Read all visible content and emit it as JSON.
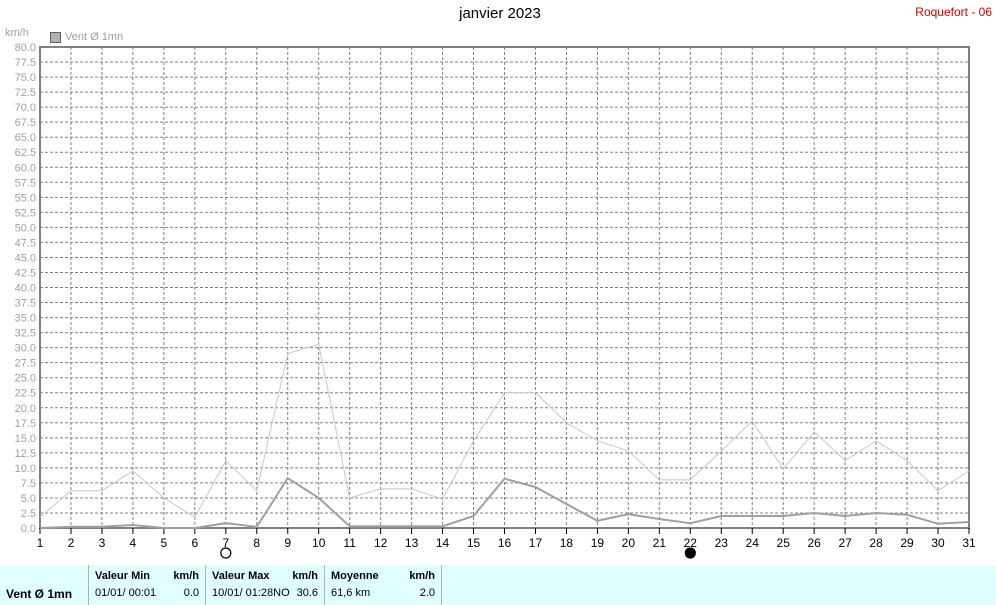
{
  "header": {
    "title": "janvier 2023",
    "station": "Roquefort - 06"
  },
  "chart_data": {
    "type": "line",
    "ylabel": "km/h",
    "ylim": [
      0,
      80
    ],
    "ytick_step": 2.5,
    "x": [
      1,
      2,
      3,
      4,
      5,
      6,
      7,
      8,
      9,
      10,
      11,
      12,
      13,
      14,
      15,
      16,
      17,
      18,
      19,
      20,
      21,
      22,
      23,
      24,
      25,
      26,
      27,
      28,
      29,
      30,
      31
    ],
    "series": [
      {
        "name": "Vent Ø 1mn",
        "color": "#a0a0a0",
        "values": [
          0.0,
          0.2,
          0.2,
          0.5,
          0.0,
          0.0,
          0.8,
          0.2,
          8.3,
          5.0,
          0.3,
          0.3,
          0.3,
          0.3,
          2.0,
          8.2,
          6.8,
          4.0,
          1.2,
          2.3,
          1.5,
          0.8,
          2.0,
          2.0,
          2.0,
          2.5,
          2.0,
          2.5,
          2.2,
          0.7,
          1.0
        ]
      },
      {
        "color": "#c8c8c8",
        "values": [
          1.8,
          6.2,
          6.2,
          9.5,
          5.0,
          1.8,
          11.2,
          6.2,
          29.0,
          30.6,
          5.0,
          6.5,
          6.5,
          4.8,
          14.5,
          22.5,
          22.5,
          17.5,
          14.5,
          12.8,
          8.0,
          8.0,
          12.8,
          17.8,
          9.8,
          16.0,
          11.2,
          14.5,
          11.2,
          6.2,
          9.5
        ]
      }
    ],
    "markers": [
      {
        "x": 7,
        "style": "open"
      },
      {
        "x": 22,
        "style": "filled"
      }
    ],
    "grid": true,
    "legend": "top-left"
  },
  "legend": {
    "label": "Vent Ø 1mn"
  },
  "footer": {
    "series_label": "Vent Ø 1mn",
    "min": {
      "label": "Valeur Min",
      "unit": "km/h",
      "date": "01/01/  00:01",
      "value": "0.0"
    },
    "max": {
      "label": "Valeur Max",
      "unit": "km/h",
      "date": "10/01/  01:28",
      "dir": "NO",
      "value": "30.6"
    },
    "avg": {
      "label": "Moyenne",
      "unit": "km/h",
      "distance": "61,6 km",
      "value": "2.0"
    }
  }
}
